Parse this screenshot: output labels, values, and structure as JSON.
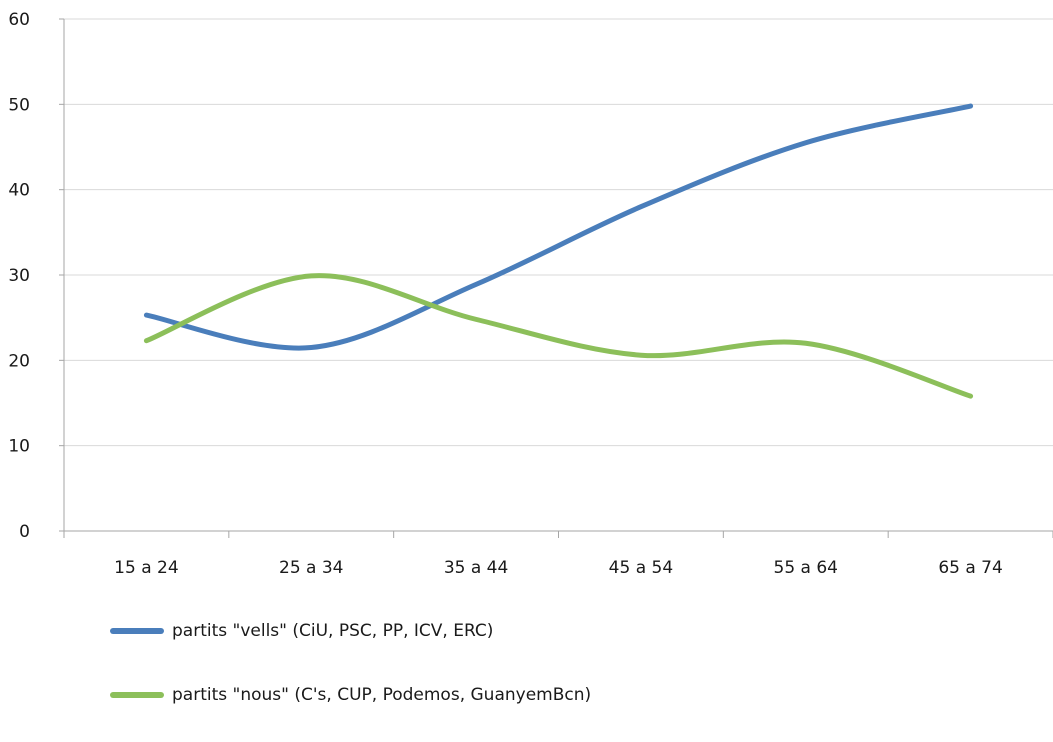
{
  "chart_data": {
    "type": "line",
    "categories": [
      "15 a 24",
      "25 a 34",
      "35 a 44",
      "45 a 54",
      "55 a 64",
      "65 a 74"
    ],
    "series": [
      {
        "name": "partits \"vells\" (CiU, PSC, PP, ICV, ERC)",
        "values": [
          25.3,
          21.5,
          28.9,
          38.0,
          45.5,
          49.8
        ],
        "color": "#4a7ebb"
      },
      {
        "name": "partits \"nous\" (C's, CUP, Podemos, GuanyemBcn)",
        "values": [
          22.3,
          29.9,
          24.8,
          20.6,
          22.0,
          15.8
        ],
        "color": "#8cbf5a"
      }
    ],
    "y_ticks": [
      "0",
      "10",
      "20",
      "30",
      "40",
      "50",
      "60"
    ],
    "ylim": [
      0,
      60
    ],
    "grid": true,
    "legend_position": "bottom-left",
    "smooth": true
  }
}
